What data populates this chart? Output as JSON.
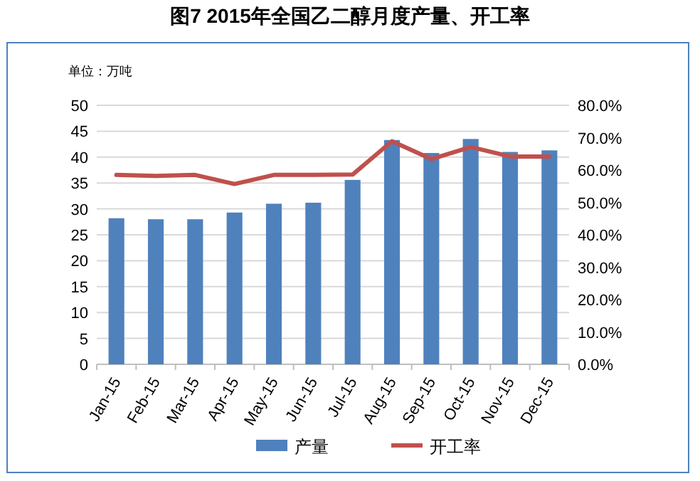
{
  "chart_data": {
    "type": "bar",
    "title": "图7 2015年全国乙二醇月度产量、开工率",
    "annotations": [
      "单位：万吨"
    ],
    "categories": [
      "Jan-15",
      "Feb-15",
      "Mar-15",
      "Apr-15",
      "May-15",
      "Jun-15",
      "Jul-15",
      "Aug-15",
      "Sep-15",
      "Oct-15",
      "Nov-15",
      "Dec-15"
    ],
    "series": [
      {
        "name": "产量",
        "color": "#4f81bd",
        "values": [
          28.2,
          28,
          28,
          29.3,
          31,
          31.2,
          35.6,
          43.3,
          40.8,
          43.5,
          41,
          41.3
        ]
      },
      {
        "name": "开工率",
        "type": "line",
        "axis": "y2",
        "color": "#c0504d",
        "values": [
          58.5,
          58.2,
          58.5,
          55.7,
          58.5,
          58.5,
          58.6,
          68.9,
          63.4,
          67.1,
          64.2,
          64.2
        ]
      }
    ],
    "ylim": [
      0,
      50
    ],
    "yticks": [
      0,
      5,
      10,
      15,
      20,
      25,
      30,
      35,
      40,
      45,
      50
    ],
    "y2lim": [
      0,
      80
    ],
    "y2ticks": [
      {
        "value": 0,
        "label": "0.0%"
      },
      {
        "value": 10,
        "label": "10.0%"
      },
      {
        "value": 20,
        "label": "20.0%"
      },
      {
        "value": 30,
        "label": "30.0%"
      },
      {
        "value": 40,
        "label": "40.0%"
      },
      {
        "value": 50,
        "label": "50.0%"
      },
      {
        "value": 60,
        "label": "60.0%"
      },
      {
        "value": 70,
        "label": "70.0%"
      },
      {
        "value": 80,
        "label": "80.0%"
      }
    ],
    "grid": "y",
    "legend": "bottom"
  }
}
